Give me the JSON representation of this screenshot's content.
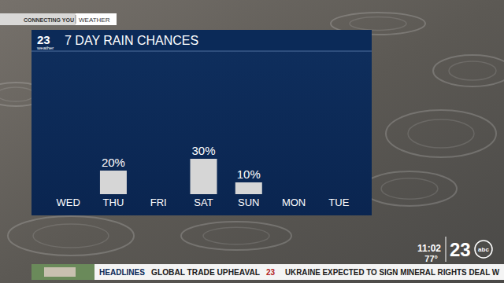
{
  "chart_data": {
    "type": "bar",
    "title": "7 DAY RAIN CHANCES",
    "categories": [
      "WED",
      "THU",
      "FRI",
      "SAT",
      "SUN",
      "MON",
      "TUE"
    ],
    "values": [
      null,
      20,
      null,
      30,
      10,
      null,
      null
    ],
    "value_labels": [
      null,
      "20%",
      null,
      "30%",
      "10%",
      null,
      null
    ],
    "color": "#d6d6d6",
    "ylim": [
      0,
      100
    ],
    "data_labels": true,
    "tick_labels": "x",
    "grid": false
  },
  "page": {
    "tab": "CONNECTING YOU",
    "section": "WEATHER",
    "panel_logo": {
      "number": "23",
      "label": "weather"
    },
    "time": "11:02",
    "temperature": "77°",
    "station_logo": {
      "number": "23",
      "network": "abc"
    },
    "ticker": {
      "label": "HEADLINES",
      "logo": "23",
      "items": [
        "GLOBAL TRADE UPHEAVAL",
        "UKRAINE EXPECTED TO SIGN MINERAL RIGHTS DEAL W"
      ]
    }
  }
}
